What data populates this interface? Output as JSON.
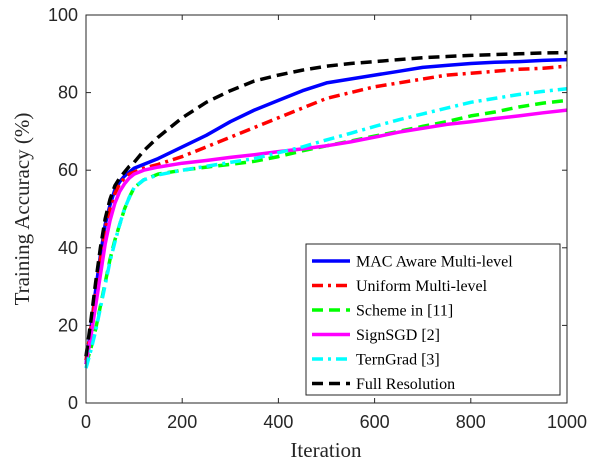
{
  "chart_data": {
    "type": "line",
    "title": "",
    "xlabel": "Iteration",
    "ylabel": "Training Accuracy (%)",
    "xlim": [
      0,
      1000
    ],
    "ylim": [
      0,
      100
    ],
    "xticks": [
      0,
      200,
      400,
      600,
      800,
      1000
    ],
    "yticks": [
      0,
      20,
      40,
      60,
      80,
      100
    ],
    "grid": false,
    "legend_position": "bottom-right",
    "series": [
      {
        "name": "MAC Aware Multi-level",
        "color": "#0000ff",
        "dash": "solid",
        "x": [
          0,
          10,
          20,
          30,
          40,
          50,
          60,
          70,
          80,
          90,
          100,
          120,
          150,
          200,
          250,
          300,
          350,
          400,
          450,
          500,
          550,
          600,
          650,
          700,
          750,
          800,
          850,
          900,
          950,
          1000
        ],
        "y": [
          10,
          19,
          29,
          38,
          46,
          51,
          55,
          57,
          58.5,
          59.5,
          60.5,
          61.5,
          63,
          66,
          69,
          72.5,
          75.5,
          78,
          80.5,
          82.5,
          83.5,
          84.5,
          85.5,
          86.5,
          87,
          87.5,
          87.8,
          88,
          88.3,
          88.5
        ]
      },
      {
        "name": "Uniform Multi-level",
        "color": "#ff0000",
        "dash": "dashdot",
        "x": [
          0,
          10,
          20,
          30,
          40,
          50,
          60,
          70,
          80,
          90,
          100,
          120,
          150,
          200,
          250,
          300,
          350,
          400,
          450,
          500,
          550,
          600,
          650,
          700,
          750,
          800,
          850,
          900,
          950,
          1000
        ],
        "y": [
          11,
          19,
          28,
          37,
          45,
          50,
          54,
          56.5,
          58,
          59,
          59.5,
          60.5,
          61.5,
          63.5,
          66,
          68.5,
          71,
          73.5,
          76,
          78.5,
          80,
          81.5,
          82.5,
          83.5,
          84.5,
          85,
          85.5,
          86,
          86.3,
          86.8
        ]
      },
      {
        "name": "Scheme in [11]",
        "color": "#00ff00",
        "dash": "dashed",
        "x": [
          0,
          10,
          20,
          30,
          40,
          50,
          60,
          70,
          80,
          90,
          100,
          120,
          150,
          200,
          250,
          300,
          350,
          400,
          450,
          500,
          550,
          600,
          650,
          700,
          750,
          800,
          850,
          900,
          950,
          1000
        ],
        "y": [
          10,
          14,
          19,
          25,
          31,
          37,
          42,
          46,
          50,
          53,
          55.5,
          57.5,
          59,
          60,
          60.8,
          61.5,
          62.3,
          63.5,
          65,
          66.3,
          67.5,
          68.8,
          70,
          71.3,
          72.5,
          74,
          75,
          76.3,
          77.3,
          78
        ]
      },
      {
        "name": "SignSGD [2]",
        "color": "#ff00ff",
        "dash": "solid",
        "x": [
          0,
          10,
          20,
          30,
          40,
          50,
          60,
          70,
          80,
          90,
          100,
          120,
          150,
          200,
          250,
          300,
          350,
          400,
          450,
          500,
          550,
          600,
          650,
          700,
          750,
          800,
          850,
          900,
          950,
          1000
        ],
        "y": [
          10,
          17,
          25,
          33,
          41,
          47,
          51.5,
          54.5,
          56.5,
          58,
          59,
          60,
          60.8,
          61.8,
          62.5,
          63.3,
          64,
          64.8,
          65.5,
          66.3,
          67.3,
          68.5,
          69.8,
          70.8,
          71.8,
          72.5,
          73.3,
          74,
          74.8,
          75.5
        ]
      },
      {
        "name": "TernGrad [3]",
        "color": "#00ffff",
        "dash": "dashdot",
        "x": [
          0,
          10,
          20,
          30,
          40,
          50,
          60,
          70,
          80,
          90,
          100,
          120,
          150,
          200,
          250,
          300,
          350,
          400,
          450,
          500,
          550,
          600,
          650,
          700,
          750,
          800,
          850,
          900,
          950,
          1000
        ],
        "y": [
          9,
          13.5,
          18.5,
          24.5,
          30.5,
          36.5,
          41.5,
          46,
          50,
          53,
          55.5,
          57.5,
          58.8,
          60,
          61,
          62,
          63,
          64.5,
          66,
          67.8,
          69.5,
          71.3,
          73,
          74.5,
          76,
          77.5,
          78.5,
          79.5,
          80.3,
          81
        ]
      },
      {
        "name": "Full Resolution",
        "color": "#000000",
        "dash": "dashed",
        "x": [
          0,
          10,
          20,
          30,
          40,
          50,
          60,
          70,
          80,
          90,
          100,
          120,
          150,
          200,
          250,
          300,
          350,
          400,
          450,
          500,
          550,
          600,
          650,
          700,
          750,
          800,
          850,
          900,
          950,
          1000
        ],
        "y": [
          12,
          21,
          31,
          40,
          47.5,
          52.5,
          56,
          58,
          59.5,
          61,
          62,
          65,
          68.5,
          73.5,
          77.5,
          80.5,
          83,
          84.5,
          85.8,
          86.8,
          87.5,
          88,
          88.5,
          89,
          89.3,
          89.6,
          89.8,
          90,
          90.2,
          90.3
        ]
      }
    ]
  }
}
